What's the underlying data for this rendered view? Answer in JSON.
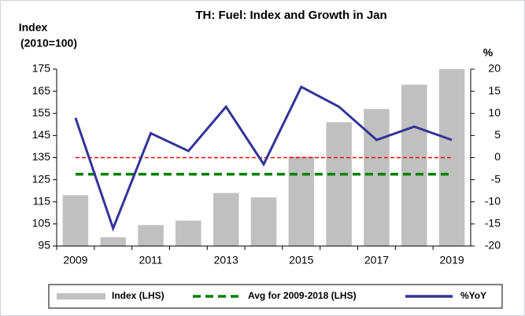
{
  "chart_data": {
    "type": "bar_line",
    "title": "TH: Fuel: Index and Growth in Jan",
    "ylabel": [
      "Index",
      "(2010=100)"
    ],
    "y2label": "%",
    "categories": [
      "2009",
      null,
      "2011",
      null,
      "2013",
      null,
      "2015",
      null,
      "2017",
      null,
      "2019"
    ],
    "series": [
      {
        "name": "Index (LHS)",
        "type": "bar",
        "color": "#c0c0c0",
        "values": [
          118,
          99,
          104.5,
          106.5,
          119,
          117,
          135.5,
          151,
          157,
          168,
          175
        ]
      },
      {
        "name": "Avg for 2009-2018 (LHS)",
        "type": "dashed_line",
        "color": "#008000",
        "values": [
          127.5,
          127.5,
          127.5,
          127.5,
          127.5,
          127.5,
          127.5,
          127.5,
          127.5,
          127.5,
          127.5
        ]
      },
      {
        "name": "%YoY",
        "type": "line",
        "axis": "y2",
        "color": "#333399",
        "values": [
          9,
          -16,
          5.5,
          1.5,
          11.5,
          -1.5,
          16,
          11.5,
          4,
          7,
          4
        ]
      }
    ],
    "reference_lines": [
      {
        "axis": "y2",
        "value": 0,
        "color": "#ff0000"
      }
    ],
    "ylim": [
      95,
      175
    ],
    "yticks": [
      95,
      105,
      115,
      125,
      135,
      145,
      155,
      165,
      175
    ],
    "y2lim": [
      -20,
      20
    ],
    "y2ticks": [
      -20,
      -15,
      -10,
      -5,
      0,
      5,
      10,
      15,
      20
    ],
    "legend": "bottom"
  }
}
